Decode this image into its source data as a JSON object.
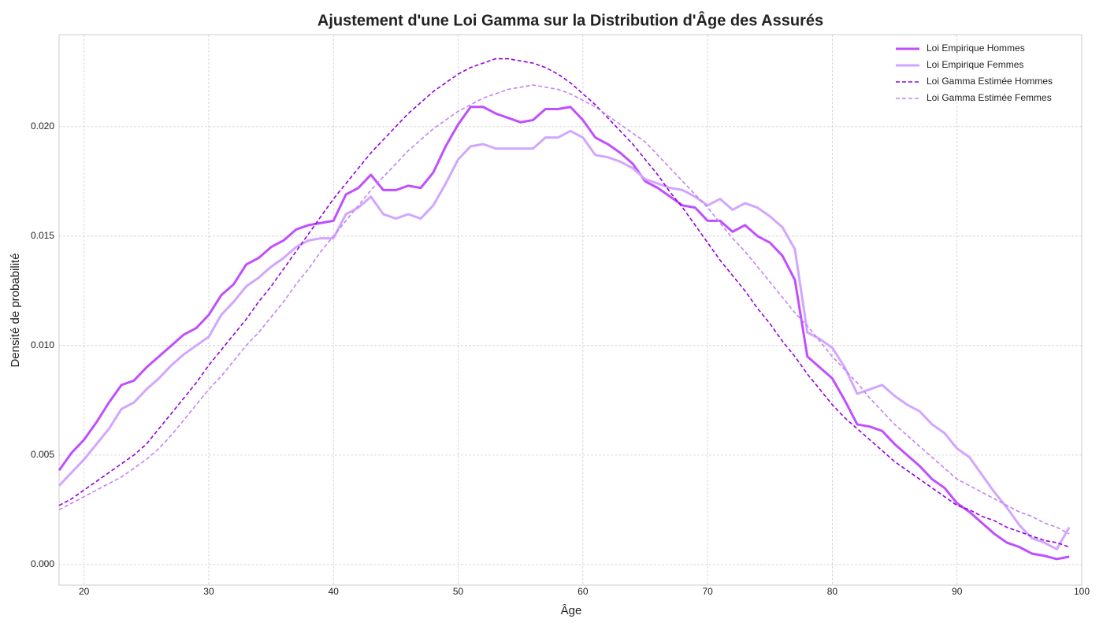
{
  "chart_data": {
    "type": "line",
    "title": "Ajustement d'une Loi Gamma sur la Distribution d'Âge des Assurés",
    "x_label": "Âge",
    "y_label": "Densité de probabilité",
    "x": [
      18,
      19,
      20,
      21,
      22,
      23,
      24,
      25,
      26,
      27,
      28,
      29,
      30,
      31,
      32,
      33,
      34,
      35,
      36,
      37,
      38,
      39,
      40,
      41,
      42,
      43,
      44,
      45,
      46,
      47,
      48,
      49,
      50,
      51,
      52,
      53,
      54,
      55,
      56,
      57,
      58,
      59,
      60,
      61,
      62,
      63,
      64,
      65,
      66,
      67,
      68,
      69,
      70,
      71,
      72,
      73,
      74,
      75,
      76,
      77,
      78,
      79,
      80,
      81,
      82,
      83,
      84,
      85,
      86,
      87,
      88,
      89,
      90,
      91,
      92,
      93,
      94,
      95,
      96,
      97,
      98,
      99
    ],
    "series": [
      {
        "name": "Loi Empirique Hommes",
        "color": "#bf4fff",
        "linestyle": "solid",
        "values": [
          0.0043,
          0.0051,
          0.0057,
          0.0065,
          0.0074,
          0.0082,
          0.0084,
          0.009,
          0.0095,
          0.01,
          0.0105,
          0.0108,
          0.0114,
          0.0123,
          0.0128,
          0.0137,
          0.014,
          0.0145,
          0.0148,
          0.0153,
          0.0155,
          0.0156,
          0.0157,
          0.0169,
          0.0172,
          0.0178,
          0.0171,
          0.0171,
          0.0173,
          0.0172,
          0.0179,
          0.0191,
          0.0201,
          0.0209,
          0.0209,
          0.0206,
          0.0204,
          0.0202,
          0.0203,
          0.0208,
          0.0208,
          0.0209,
          0.0203,
          0.0195,
          0.0192,
          0.0188,
          0.0183,
          0.0175,
          0.0172,
          0.0168,
          0.0164,
          0.0163,
          0.0157,
          0.0157,
          0.0152,
          0.0155,
          0.015,
          0.0147,
          0.0141,
          0.013,
          0.0095,
          0.009,
          0.0085,
          0.0075,
          0.0064,
          0.0063,
          0.0061,
          0.0055,
          0.005,
          0.0045,
          0.0039,
          0.0035,
          0.0028,
          0.0024,
          0.0019,
          0.0014,
          0.001,
          0.0008,
          0.0005,
          0.0004,
          0.00025,
          0.00036
        ]
      },
      {
        "name": "Loi Empirique Femmes",
        "color": "#d2a6ff",
        "linestyle": "solid",
        "values": [
          0.0036,
          0.0042,
          0.0048,
          0.0055,
          0.0062,
          0.0071,
          0.0074,
          0.008,
          0.0085,
          0.0091,
          0.0096,
          0.01,
          0.0104,
          0.0114,
          0.012,
          0.0127,
          0.0131,
          0.0136,
          0.014,
          0.0145,
          0.0148,
          0.0149,
          0.0149,
          0.016,
          0.0163,
          0.0168,
          0.016,
          0.0158,
          0.016,
          0.0158,
          0.0164,
          0.0174,
          0.0185,
          0.0191,
          0.0192,
          0.019,
          0.019,
          0.019,
          0.019,
          0.0195,
          0.0195,
          0.0198,
          0.0195,
          0.0187,
          0.0186,
          0.0184,
          0.0181,
          0.0176,
          0.0174,
          0.0172,
          0.0171,
          0.0168,
          0.0164,
          0.0167,
          0.0162,
          0.0165,
          0.0163,
          0.0159,
          0.0154,
          0.0144,
          0.0106,
          0.0103,
          0.0099,
          0.009,
          0.0078,
          0.008,
          0.0082,
          0.0077,
          0.0073,
          0.007,
          0.0064,
          0.006,
          0.0053,
          0.0049,
          0.0041,
          0.0033,
          0.0026,
          0.0018,
          0.0012,
          0.001,
          0.0007,
          0.0017
        ]
      },
      {
        "name": "Loi Gamma Estimée Hommes",
        "color": "#9400e0",
        "linestyle": "dashed",
        "values": [
          0.0027,
          0.003,
          0.0034,
          0.0038,
          0.0042,
          0.0046,
          0.005,
          0.0055,
          0.0062,
          0.0069,
          0.0076,
          0.0083,
          0.0091,
          0.0098,
          0.0105,
          0.0112,
          0.012,
          0.0127,
          0.0135,
          0.0143,
          0.0151,
          0.0159,
          0.0167,
          0.0174,
          0.0181,
          0.0188,
          0.0194,
          0.02,
          0.0206,
          0.0211,
          0.0216,
          0.022,
          0.0224,
          0.0227,
          0.0229,
          0.0231,
          0.0231,
          0.023,
          0.0229,
          0.0227,
          0.0224,
          0.022,
          0.0215,
          0.021,
          0.0204,
          0.0198,
          0.0192,
          0.0185,
          0.0178,
          0.017,
          0.0163,
          0.0155,
          0.0147,
          0.0139,
          0.0132,
          0.0125,
          0.0117,
          0.011,
          0.0102,
          0.0095,
          0.0087,
          0.008,
          0.0073,
          0.0067,
          0.0062,
          0.0057,
          0.0052,
          0.0047,
          0.0043,
          0.0039,
          0.0035,
          0.0031,
          0.0027,
          0.0025,
          0.0022,
          0.002,
          0.0017,
          0.0015,
          0.0013,
          0.0011,
          0.001,
          0.0008
        ]
      },
      {
        "name": "Loi Gamma Estimée Femmes",
        "color": "#c084f5",
        "linestyle": "dashed",
        "values": [
          0.0025,
          0.0028,
          0.0031,
          0.0034,
          0.0037,
          0.004,
          0.0044,
          0.0048,
          0.0053,
          0.0059,
          0.0066,
          0.0073,
          0.008,
          0.0086,
          0.0093,
          0.01,
          0.0106,
          0.0113,
          0.012,
          0.0128,
          0.0135,
          0.0143,
          0.015,
          0.0157,
          0.0164,
          0.0171,
          0.0177,
          0.0183,
          0.0189,
          0.0194,
          0.0199,
          0.0203,
          0.0207,
          0.021,
          0.0213,
          0.0215,
          0.0217,
          0.0218,
          0.0219,
          0.0218,
          0.0217,
          0.0215,
          0.0212,
          0.0209,
          0.0205,
          0.0201,
          0.0197,
          0.0193,
          0.0187,
          0.0181,
          0.0175,
          0.0169,
          0.0163,
          0.0156,
          0.0149,
          0.0143,
          0.0136,
          0.0129,
          0.0122,
          0.0115,
          0.0109,
          0.0102,
          0.0095,
          0.0089,
          0.0083,
          0.0076,
          0.007,
          0.0064,
          0.0059,
          0.0054,
          0.0049,
          0.0044,
          0.0039,
          0.0036,
          0.0033,
          0.003,
          0.0027,
          0.0024,
          0.0022,
          0.0019,
          0.0017,
          0.0014
        ]
      }
    ],
    "xlim": [
      18,
      100
    ],
    "ylim": [
      -0.00094,
      0.0242
    ],
    "xticks": [
      20,
      30,
      40,
      50,
      60,
      70,
      80,
      90,
      100
    ],
    "yticks": [
      {
        "value": 0,
        "label": "0.000"
      },
      {
        "value": 0.005,
        "label": "0.005"
      },
      {
        "value": 0.01,
        "label": "0.010"
      },
      {
        "value": 0.015,
        "label": "0.015"
      },
      {
        "value": 0.02,
        "label": "0.020"
      }
    ],
    "grid": true,
    "legend": "upper right"
  }
}
